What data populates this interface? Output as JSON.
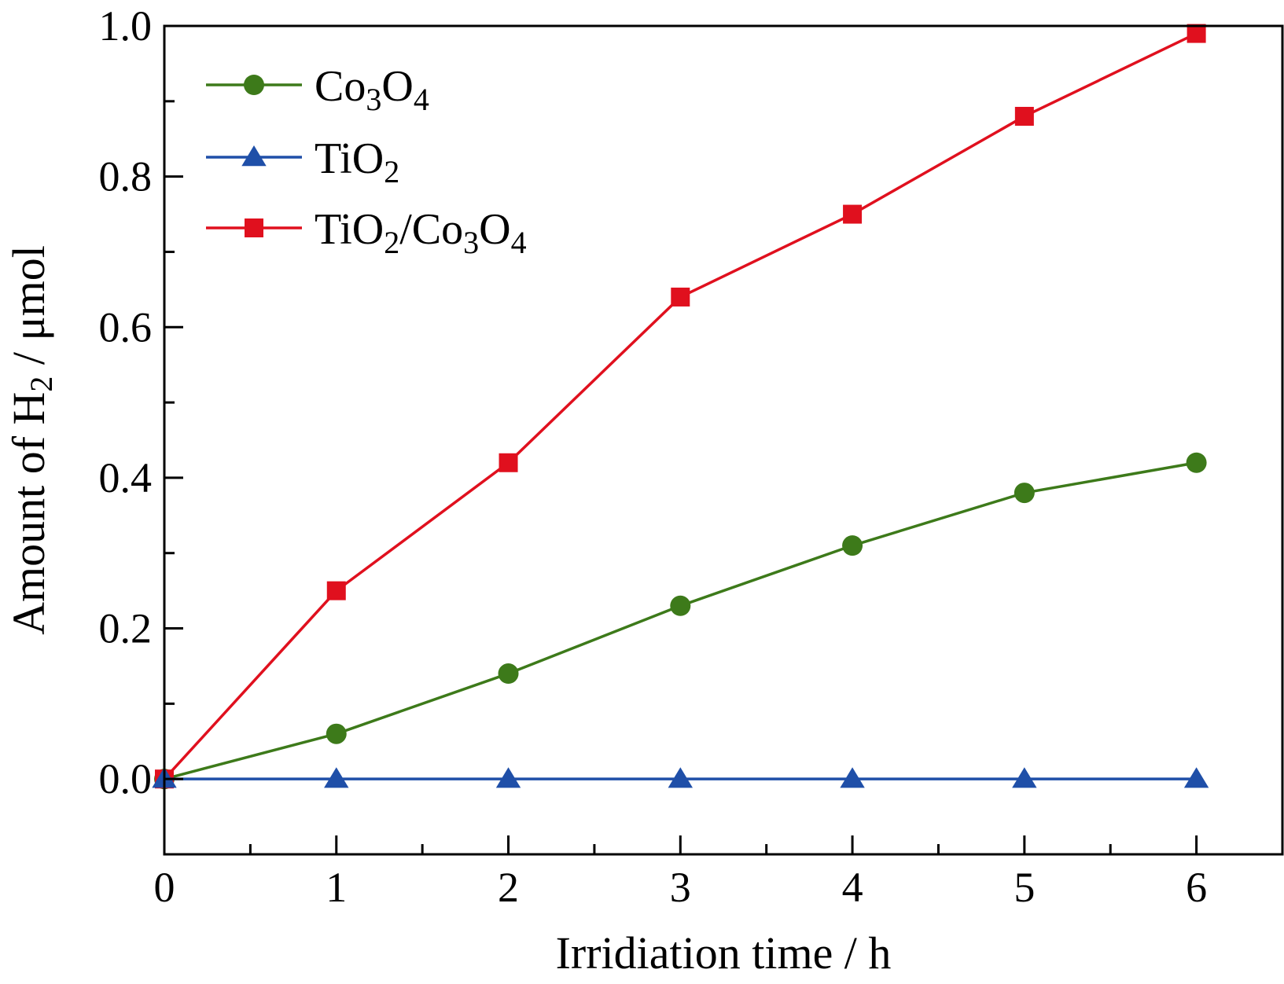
{
  "chart_data": {
    "type": "line",
    "title": "",
    "xlabel": "Irridiation time / h",
    "ylabel": {
      "prefix": "Amount of H",
      "sub": "2",
      "suffix": " / μmol"
    },
    "x": [
      0,
      1,
      2,
      3,
      4,
      5,
      6
    ],
    "xlim": [
      0,
      6.5
    ],
    "ylim": [
      -0.1,
      1.0
    ],
    "xticks": [
      0,
      1,
      2,
      3,
      4,
      5,
      6
    ],
    "xtick_labels": [
      "0",
      "1",
      "2",
      "3",
      "4",
      "5",
      "6"
    ],
    "yticks": [
      0.0,
      0.2,
      0.4,
      0.6,
      0.8,
      1.0
    ],
    "ytick_labels": [
      "0.0",
      "0.2",
      "0.4",
      "0.6",
      "0.8",
      "1.0"
    ],
    "grid": false,
    "legend_position": "top-left",
    "series": [
      {
        "name": "Co3O4",
        "name_parts": [
          [
            "Co",
            ""
          ],
          [
            "3",
            "sub"
          ],
          [
            "O",
            ""
          ],
          [
            "4",
            "sub"
          ]
        ],
        "color": "#3d7a1a",
        "marker": "circle",
        "values": [
          0.0,
          0.06,
          0.14,
          0.23,
          0.31,
          0.38,
          0.42
        ]
      },
      {
        "name": "TiO2",
        "name_parts": [
          [
            "TiO",
            ""
          ],
          [
            "2",
            "sub"
          ]
        ],
        "color": "#1f4fa8",
        "marker": "triangle",
        "values": [
          0.0,
          0.0,
          0.0,
          0.0,
          0.0,
          0.0,
          0.0
        ]
      },
      {
        "name": "TiO2/Co3O4",
        "name_parts": [
          [
            "TiO",
            ""
          ],
          [
            "2",
            "sub"
          ],
          [
            "/Co",
            ""
          ],
          [
            "3",
            "sub"
          ],
          [
            "O",
            ""
          ],
          [
            "4",
            "sub"
          ]
        ],
        "color": "#e0101e",
        "marker": "square",
        "values": [
          0.0,
          0.25,
          0.42,
          0.64,
          0.75,
          0.88,
          0.99
        ]
      }
    ]
  }
}
